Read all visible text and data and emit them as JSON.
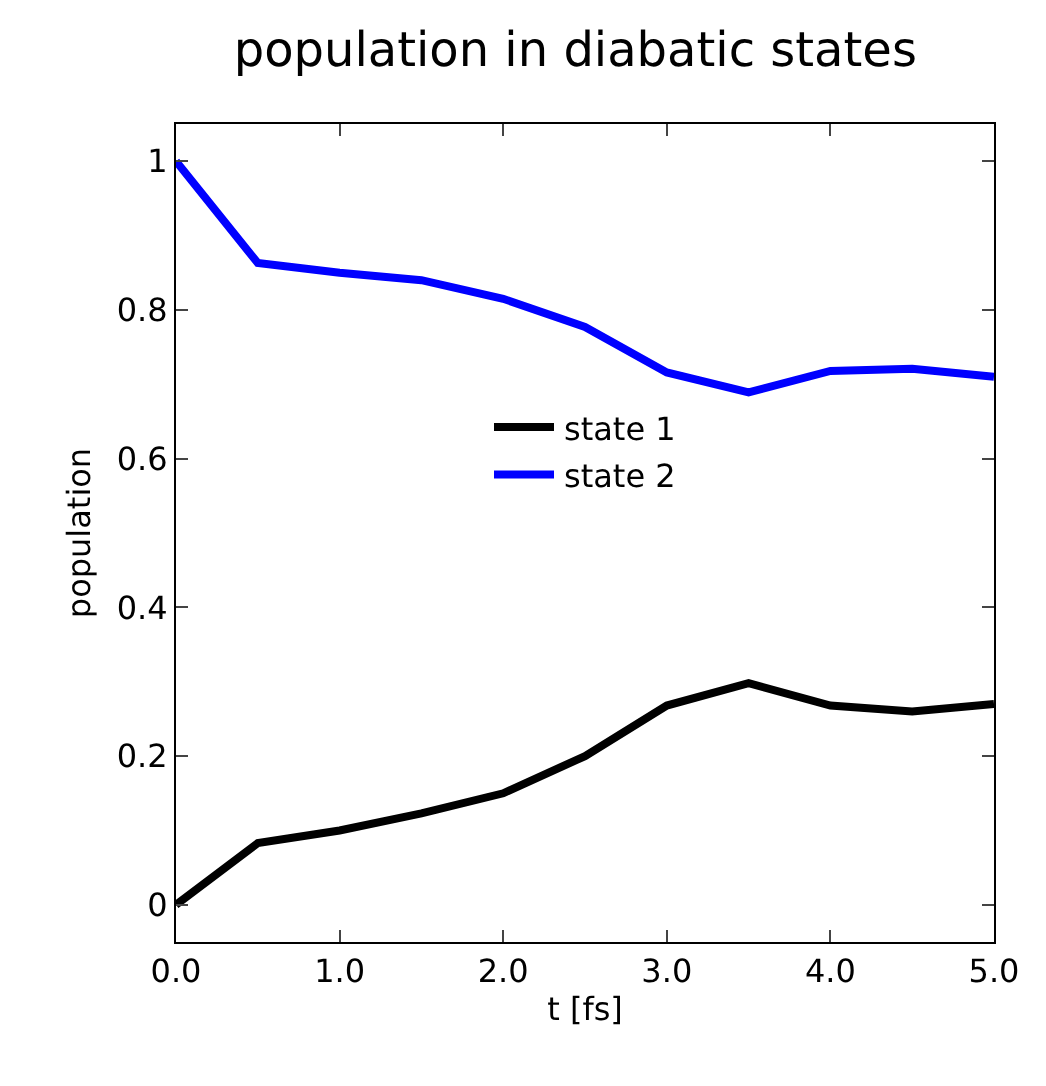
{
  "chart_data": {
    "type": "line",
    "title": "population in diabatic states",
    "xlabel": "t [fs]",
    "ylabel": "population",
    "x": [
      0,
      0.5,
      1,
      1.5,
      2,
      2.5,
      3,
      3.5,
      4,
      4.5,
      5
    ],
    "series": [
      {
        "name": "state 1",
        "color": "#000000",
        "values": [
          0,
          0.083,
          0.1,
          0.123,
          0.15,
          0.2,
          0.268,
          0.298,
          0.268,
          0.26,
          0.27
        ]
      },
      {
        "name": "state 2",
        "color": "#0000ff",
        "values": [
          1,
          0.863,
          0.85,
          0.84,
          0.815,
          0.777,
          0.716,
          0.689,
          0.718,
          0.721,
          0.71
        ]
      }
    ],
    "xlim": [
      0,
      5
    ],
    "xticks": [
      {
        "value": 0,
        "label": "0.0"
      },
      {
        "value": 1,
        "label": "1.0"
      },
      {
        "value": 2,
        "label": "2.0"
      },
      {
        "value": 3,
        "label": "3.0"
      },
      {
        "value": 4,
        "label": "4.0"
      },
      {
        "value": 5,
        "label": "5.0"
      }
    ],
    "ylim": [
      -0.05,
      1.05
    ],
    "yticks": [
      0,
      0.2,
      0.4,
      0.6,
      0.8,
      1
    ],
    "legend": "center",
    "marker": "none",
    "line_style": "solid"
  }
}
